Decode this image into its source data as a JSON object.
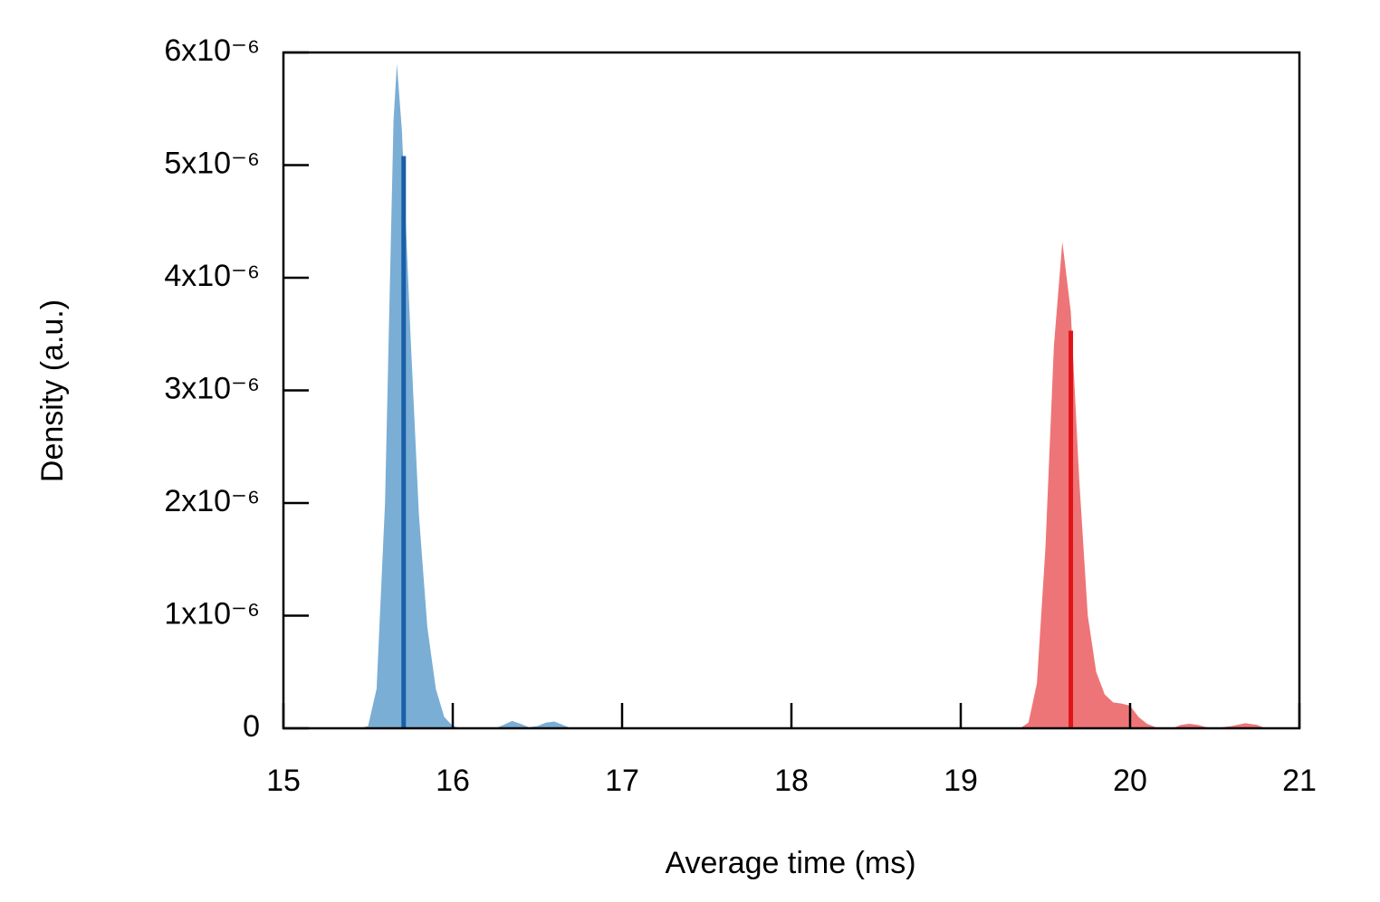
{
  "chart_data": {
    "type": "area",
    "xlabel": "Average time (ms)",
    "ylabel": "Density (a.u.)",
    "xlim": [
      15,
      21
    ],
    "xticks": [
      15,
      16,
      17,
      18,
      19,
      20,
      21
    ],
    "ylim": [
      0,
      6e-06
    ],
    "yticks": [
      0,
      {
        "value": 1e-06,
        "label": "1x10⁻⁶"
      },
      {
        "value": 2e-06,
        "label": "2x10⁻⁶"
      },
      {
        "value": 3e-06,
        "label": "3x10⁻⁶"
      },
      {
        "value": 4e-06,
        "label": "4x10⁻⁶"
      },
      {
        "value": 5e-06,
        "label": "5x10⁻⁶"
      },
      {
        "value": 6e-06,
        "label": "6x10⁻⁶"
      }
    ],
    "series": [
      {
        "color": "#7aaed5",
        "line_color": "#1a5fa8",
        "x": [
          15.45,
          15.5,
          15.55,
          15.6,
          15.65,
          15.67,
          15.7,
          15.75,
          15.8,
          15.85,
          15.9,
          15.95,
          16.0,
          16.05,
          16.25,
          16.3,
          16.35,
          16.4,
          16.45,
          16.5,
          16.55,
          16.6,
          16.65,
          16.7
        ],
        "values": [
          0,
          2e-08,
          3.5e-07,
          2e-06,
          5.4e-06,
          5.9e-06,
          5.3e-06,
          3.5e-06,
          1.9e-06,
          9e-07,
          3.5e-07,
          1e-07,
          2e-08,
          0,
          0,
          3e-08,
          6.5e-08,
          4e-08,
          1e-08,
          2e-08,
          5e-08,
          6e-08,
          3e-08,
          0
        ],
        "mean_x": 15.71,
        "mean_value": 5.08e-06
      },
      {
        "color": "#ee7577",
        "line_color": "#e0151a",
        "x": [
          19.35,
          19.4,
          19.45,
          19.5,
          19.55,
          19.6,
          19.65,
          19.7,
          19.75,
          19.8,
          19.85,
          19.9,
          19.95,
          20.0,
          20.05,
          20.1,
          20.15,
          20.2,
          20.25,
          20.3,
          20.35,
          20.4,
          20.45,
          20.5,
          20.6,
          20.68,
          20.75,
          20.8
        ],
        "values": [
          0,
          5e-08,
          4e-07,
          1.6e-06,
          3.4e-06,
          4.32e-06,
          3.7e-06,
          2.2e-06,
          1e-06,
          5e-07,
          3e-07,
          2.3e-07,
          2.2e-07,
          2e-07,
          1e-07,
          4e-08,
          1e-08,
          0,
          0,
          3e-08,
          4e-08,
          3e-08,
          1e-08,
          0,
          2e-08,
          4.5e-08,
          3e-08,
          0
        ],
        "mean_x": 19.65,
        "mean_value": 3.53e-06
      }
    ]
  }
}
